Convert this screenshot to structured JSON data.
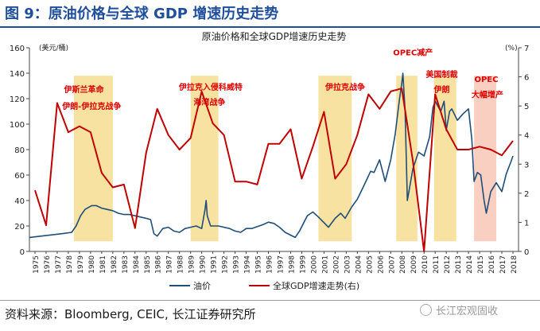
{
  "figure": {
    "title": "图 9：原油价格与全球 GDP 增速历史走势",
    "source": "资料来源：Bloomberg, CEIC, 长江证券研究所",
    "watermark": "长江宏观固收",
    "watermark_icon": "wechat-icon"
  },
  "chart_data": {
    "type": "line",
    "title": "原油价格和全球GDP增速历史走势",
    "ylabel_left": "(美元/桶)",
    "ylabel_right": "(%)",
    "ylim_left": [
      0,
      160
    ],
    "yticks_left": [
      0,
      20,
      40,
      60,
      80,
      100,
      120,
      140,
      160
    ],
    "ylim_right": [
      0,
      7
    ],
    "yticks_right": [
      0,
      1,
      2,
      3,
      4,
      5,
      6,
      7
    ],
    "xlim": [
      1975,
      2019
    ],
    "xticks": [
      "1975",
      "1976",
      "1977",
      "1978",
      "1979",
      "1980",
      "1981",
      "1982",
      "1983",
      "1984",
      "1985",
      "1986",
      "1987",
      "1988",
      "1989",
      "1990",
      "1991",
      "1992",
      "1993",
      "1994",
      "1995",
      "1996",
      "1997",
      "1998",
      "1999",
      "2000",
      "2001",
      "2002",
      "2003",
      "2004",
      "2005",
      "2006",
      "2007",
      "2008",
      "2009",
      "2010",
      "2011",
      "2012",
      "2013",
      "2014",
      "2015",
      "2016",
      "2017",
      "2018"
    ],
    "legend": [
      "油价",
      "全球GDP增速走势(右)"
    ],
    "legend_position": "bottom",
    "series": [
      {
        "name": "油价",
        "axis": "left",
        "color": "#1f4e79",
        "points": [
          [
            1975.0,
            11
          ],
          [
            1976.0,
            12
          ],
          [
            1977.0,
            13
          ],
          [
            1978.0,
            14
          ],
          [
            1978.8,
            15
          ],
          [
            1979.2,
            20
          ],
          [
            1979.6,
            28
          ],
          [
            1980.0,
            33
          ],
          [
            1980.6,
            36
          ],
          [
            1981.0,
            36
          ],
          [
            1981.5,
            34
          ],
          [
            1982.0,
            33
          ],
          [
            1982.5,
            32
          ],
          [
            1983.0,
            30
          ],
          [
            1983.5,
            29
          ],
          [
            1984.0,
            29
          ],
          [
            1984.5,
            28
          ],
          [
            1985.0,
            27
          ],
          [
            1985.5,
            26
          ],
          [
            1985.9,
            25
          ],
          [
            1986.2,
            14
          ],
          [
            1986.5,
            12
          ],
          [
            1987.0,
            18
          ],
          [
            1987.5,
            19
          ],
          [
            1988.0,
            16
          ],
          [
            1988.5,
            15
          ],
          [
            1989.0,
            18
          ],
          [
            1989.5,
            19
          ],
          [
            1990.0,
            20
          ],
          [
            1990.5,
            18
          ],
          [
            1990.8,
            33
          ],
          [
            1990.9,
            40
          ],
          [
            1991.0,
            28
          ],
          [
            1991.3,
            20
          ],
          [
            1992.0,
            20
          ],
          [
            1993.0,
            18
          ],
          [
            1993.5,
            16
          ],
          [
            1994.0,
            15
          ],
          [
            1994.5,
            18
          ],
          [
            1995.0,
            18
          ],
          [
            1996.0,
            21
          ],
          [
            1996.5,
            23
          ],
          [
            1997.0,
            22
          ],
          [
            1997.5,
            19
          ],
          [
            1998.0,
            15
          ],
          [
            1998.9,
            11
          ],
          [
            1999.3,
            16
          ],
          [
            2000.0,
            28
          ],
          [
            2000.5,
            31
          ],
          [
            2001.0,
            27
          ],
          [
            2001.9,
            19
          ],
          [
            2002.5,
            26
          ],
          [
            2003.0,
            30
          ],
          [
            2003.4,
            26
          ],
          [
            2004.0,
            35
          ],
          [
            2004.5,
            41
          ],
          [
            2005.0,
            50
          ],
          [
            2005.7,
            63
          ],
          [
            2006.0,
            62
          ],
          [
            2006.5,
            72
          ],
          [
            2007.0,
            55
          ],
          [
            2007.5,
            72
          ],
          [
            2007.9,
            92
          ],
          [
            2008.3,
            120
          ],
          [
            2008.5,
            132
          ],
          [
            2008.6,
            140
          ],
          [
            2008.8,
            110
          ],
          [
            2008.9,
            75
          ],
          [
            2009.0,
            40
          ],
          [
            2009.5,
            65
          ],
          [
            2010.0,
            78
          ],
          [
            2010.5,
            75
          ],
          [
            2011.0,
            90
          ],
          [
            2011.3,
            113
          ],
          [
            2011.5,
            118
          ],
          [
            2012.0,
            110
          ],
          [
            2012.3,
            118
          ],
          [
            2012.5,
            95
          ],
          [
            2012.8,
            110
          ],
          [
            2013.0,
            112
          ],
          [
            2013.5,
            103
          ],
          [
            2014.0,
            108
          ],
          [
            2014.5,
            112
          ],
          [
            2014.8,
            88
          ],
          [
            2015.0,
            55
          ],
          [
            2015.3,
            62
          ],
          [
            2015.6,
            60
          ],
          [
            2015.9,
            40
          ],
          [
            2016.1,
            30
          ],
          [
            2016.5,
            47
          ],
          [
            2017.0,
            54
          ],
          [
            2017.5,
            47
          ],
          [
            2017.9,
            61
          ],
          [
            2018.3,
            70
          ],
          [
            2018.5,
            75
          ]
        ]
      },
      {
        "name": "全球GDP增速走势(右)",
        "axis": "right",
        "color": "#c00000",
        "points": [
          [
            1975,
            2.1
          ],
          [
            1976,
            0.9
          ],
          [
            1977,
            5.1
          ],
          [
            1978,
            4.1
          ],
          [
            1979,
            4.3
          ],
          [
            1980,
            4.1
          ],
          [
            1981,
            2.7
          ],
          [
            1982,
            2.2
          ],
          [
            1983,
            2.3
          ],
          [
            1984,
            0.8
          ],
          [
            1985,
            3.4
          ],
          [
            1986,
            4.9
          ],
          [
            1987,
            4.0
          ],
          [
            1988,
            3.5
          ],
          [
            1989,
            3.9
          ],
          [
            1990,
            5.5
          ],
          [
            1991,
            4.4
          ],
          [
            1992,
            4.0
          ],
          [
            1993,
            2.4
          ],
          [
            1994,
            2.4
          ],
          [
            1995,
            2.3
          ],
          [
            1996,
            3.7
          ],
          [
            1997,
            3.7
          ],
          [
            1998,
            4.2
          ],
          [
            1999,
            2.5
          ],
          [
            2000,
            3.6
          ],
          [
            2001,
            4.8
          ],
          [
            2002,
            2.5
          ],
          [
            2003,
            3.0
          ],
          [
            2004,
            4.0
          ],
          [
            2005,
            5.4
          ],
          [
            2006,
            4.9
          ],
          [
            2007,
            5.5
          ],
          [
            2008,
            5.6
          ],
          [
            2009,
            3.1
          ],
          [
            2010,
            0.0
          ],
          [
            2011,
            5.4
          ],
          [
            2012,
            4.2
          ],
          [
            2013,
            3.5
          ],
          [
            2014,
            3.5
          ],
          [
            2015,
            3.6
          ],
          [
            2016,
            3.5
          ],
          [
            2017,
            3.3
          ],
          [
            2018,
            3.8
          ]
        ]
      }
    ],
    "annotations": [
      {
        "label": "伊斯兰革命",
        "year": 1979.9,
        "value": 125
      },
      {
        "label": "伊朗-伊拉克战争",
        "year": 1980.6,
        "value": 112
      },
      {
        "label": "伊拉克入侵科威特",
        "year": 1991.3,
        "value": 127
      },
      {
        "label": "海湾战争",
        "year": 1991.2,
        "value": 115
      },
      {
        "label": "伊拉克战争",
        "year": 2003.4,
        "value": 127
      },
      {
        "label": "OPEC减产",
        "year": 2009.5,
        "value": 154
      },
      {
        "label": "美国制裁",
        "year": 2012.1,
        "value": 137
      },
      {
        "label": "伊朗",
        "year": 2012.1,
        "value": 125
      },
      {
        "label": "OPEC",
        "year": 2016.1,
        "value": 133
      },
      {
        "label": "大幅增产",
        "year": 2016.2,
        "value": 121
      }
    ],
    "highlight_ranges": [
      {
        "start": 1979.0,
        "end": 1982.5,
        "color": "#f7e2a2"
      },
      {
        "start": 1989.5,
        "end": 1992.0,
        "color": "#f7e2a2"
      },
      {
        "start": 2001.0,
        "end": 2004.0,
        "color": "#f7e2a2"
      },
      {
        "start": 2008.0,
        "end": 2009.9,
        "color": "#f7e2a2"
      },
      {
        "start": 2011.4,
        "end": 2013.4,
        "color": "#f7e2a2"
      },
      {
        "start": 2015.0,
        "end": 2017.0,
        "color": "#f8cfc0"
      }
    ],
    "annotation_color": "#e00000"
  }
}
